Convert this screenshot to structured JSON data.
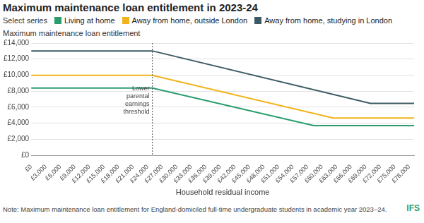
{
  "chart_data": {
    "type": "line",
    "title": "Maximum maintenance loan entitlement in 2023-24",
    "legend_title": "Select series",
    "legend": "top-left",
    "y_label": "Maximum maintenance loan entitlement",
    "x_label": "Household residual income",
    "note": "Note: Maximum maintenance loan entitlement for England-domiciled full-time undergraduate students in academic year 2023–24.",
    "logo": "IFS",
    "annotation": {
      "x": 25000,
      "text": "Lower parental earnings threshold"
    },
    "x": [
      0,
      25000,
      58300,
      62300,
      70000,
      79000
    ],
    "series": [
      {
        "name": "Living at home",
        "color": "#2a9d6f",
        "values": [
          8400,
          8400,
          3700,
          null,
          null,
          3700
        ]
      },
      {
        "name": "Away from home, outside London",
        "color": "#f2b41b",
        "values": [
          9980,
          9980,
          null,
          4650,
          null,
          4650
        ]
      },
      {
        "name": "Away from home, studying in London",
        "color": "#3b5a63",
        "values": [
          13020,
          13020,
          null,
          null,
          6490,
          6490
        ]
      }
    ],
    "xlim": [
      0,
      79000
    ],
    "xticks": [
      {
        "value": 0,
        "label": "£0"
      },
      {
        "value": 3000,
        "label": "£3,000"
      },
      {
        "value": 6000,
        "label": "£6,000"
      },
      {
        "value": 9000,
        "label": "£9,000"
      },
      {
        "value": 12000,
        "label": "£12,000"
      },
      {
        "value": 15000,
        "label": "£15,000"
      },
      {
        "value": 18000,
        "label": "£18,000"
      },
      {
        "value": 21000,
        "label": "£21,000"
      },
      {
        "value": 24000,
        "label": "£24,000"
      },
      {
        "value": 27000,
        "label": "£27,000"
      },
      {
        "value": 30000,
        "label": "£30,000"
      },
      {
        "value": 33000,
        "label": "£33,000"
      },
      {
        "value": 36000,
        "label": "£36,000"
      },
      {
        "value": 39000,
        "label": "£39,000"
      },
      {
        "value": 42000,
        "label": "£42,000"
      },
      {
        "value": 45000,
        "label": "£45,000"
      },
      {
        "value": 48000,
        "label": "£48,000"
      },
      {
        "value": 51000,
        "label": "£51,000"
      },
      {
        "value": 54000,
        "label": "£54,000"
      },
      {
        "value": 57000,
        "label": "£57,000"
      },
      {
        "value": 60000,
        "label": "£60,000"
      },
      {
        "value": 63000,
        "label": "£63,000"
      },
      {
        "value": 66000,
        "label": "£66,000"
      },
      {
        "value": 69000,
        "label": "£69,000"
      },
      {
        "value": 72000,
        "label": "£72,000"
      },
      {
        "value": 75000,
        "label": "£75,000"
      },
      {
        "value": 78000,
        "label": "£78,000"
      }
    ],
    "ylim": [
      0,
      14000
    ],
    "yticks": [
      {
        "value": 0,
        "label": "£0"
      },
      {
        "value": 2000,
        "label": "£2,000"
      },
      {
        "value": 4000,
        "label": "£4,000"
      },
      {
        "value": 6000,
        "label": "£6,000"
      },
      {
        "value": 8000,
        "label": "£8,000"
      },
      {
        "value": 10000,
        "label": "£10,000"
      },
      {
        "value": 12000,
        "label": "£12,000"
      },
      {
        "value": 14000,
        "label": "£14,000"
      }
    ],
    "grid": "y"
  }
}
